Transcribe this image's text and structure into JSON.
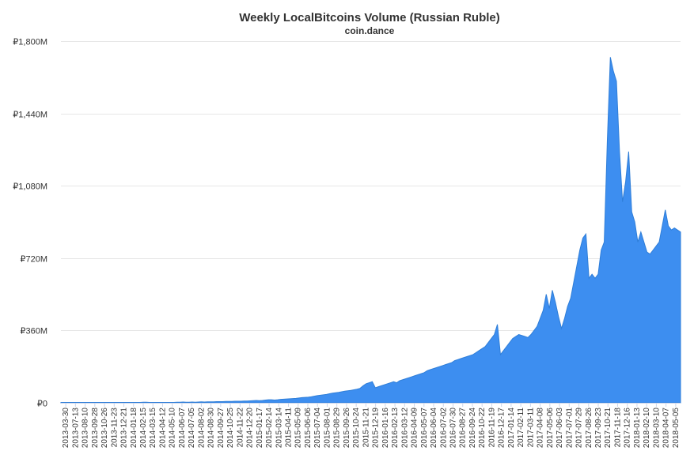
{
  "chart_data": {
    "type": "area",
    "title": "Weekly LocalBitcoins Volume (Russian Ruble)",
    "subtitle": "coin.dance",
    "xlabel": "",
    "ylabel": "",
    "ylim": [
      0,
      1800
    ],
    "y_ticks": [
      0,
      360,
      720,
      1080,
      1440,
      1800
    ],
    "y_tick_labels": [
      "₽0",
      "₽360M",
      "₽720M",
      "₽1,080M",
      "₽1,440M",
      "₽1,800M"
    ],
    "x_tick_labels": [
      "2013-03-30",
      "2013-07-13",
      "2013-08-10",
      "2013-09-28",
      "2013-10-26",
      "2013-11-23",
      "2013-12-21",
      "2014-01-18",
      "2014-02-15",
      "2014-03-15",
      "2014-04-12",
      "2014-05-10",
      "2014-06-07",
      "2014-07-05",
      "2014-08-02",
      "2014-08-30",
      "2014-09-27",
      "2014-10-25",
      "2014-11-22",
      "2014-12-20",
      "2015-01-17",
      "2015-02-14",
      "2015-03-14",
      "2015-04-11",
      "2015-05-09",
      "2015-06-06",
      "2015-07-04",
      "2015-08-01",
      "2015-08-29",
      "2015-09-26",
      "2015-10-24",
      "2015-11-21",
      "2015-12-19",
      "2016-01-16",
      "2016-02-13",
      "2016-03-12",
      "2016-04-09",
      "2016-05-07",
      "2016-06-04",
      "2016-07-02",
      "2016-07-30",
      "2016-08-27",
      "2016-09-24",
      "2016-10-22",
      "2016-11-19",
      "2016-12-17",
      "2017-01-14",
      "2017-02-11",
      "2017-03-11",
      "2017-04-08",
      "2017-05-06",
      "2017-06-03",
      "2017-07-01",
      "2017-07-29",
      "2017-08-26",
      "2017-09-23",
      "2017-10-21",
      "2017-11-18",
      "2017-12-16",
      "2018-01-13",
      "2018-02-10",
      "2018-03-10",
      "2018-04-07",
      "2018-05-05"
    ],
    "series": [
      {
        "color": "#3d8ef0",
        "values": [
          2,
          2,
          2,
          2,
          2,
          2,
          2,
          2,
          2,
          2,
          2,
          2,
          2,
          2,
          2,
          2,
          2,
          2,
          2,
          2,
          2,
          2,
          2,
          2,
          2,
          2,
          2,
          3,
          3,
          2,
          2,
          2,
          2,
          2,
          2,
          2,
          2,
          2,
          3,
          3,
          4,
          3,
          3,
          4,
          3,
          4,
          5,
          4,
          5,
          5,
          5,
          6,
          6,
          6,
          7,
          7,
          7,
          8,
          8,
          8,
          9,
          9,
          10,
          11,
          12,
          11,
          12,
          14,
          15,
          15,
          14,
          15,
          17,
          18,
          19,
          20,
          21,
          22,
          24,
          26,
          27,
          28,
          30,
          33,
          36,
          38,
          40,
          42,
          45,
          48,
          50,
          52,
          55,
          58,
          60,
          62,
          65,
          68,
          72,
          85,
          95,
          100,
          105,
          75,
          80,
          85,
          90,
          95,
          100,
          105,
          100,
          110,
          115,
          120,
          125,
          130,
          135,
          140,
          145,
          150,
          160,
          165,
          170,
          175,
          180,
          185,
          190,
          195,
          200,
          210,
          215,
          220,
          225,
          230,
          235,
          240,
          250,
          260,
          270,
          280,
          300,
          320,
          340,
          390,
          240,
          260,
          280,
          300,
          320,
          330,
          340,
          335,
          330,
          325,
          340,
          360,
          380,
          420,
          460,
          540,
          470,
          560,
          500,
          430,
          370,
          420,
          480,
          520,
          600,
          680,
          760,
          820,
          840,
          620,
          640,
          620,
          640,
          760,
          800,
          1300,
          1720,
          1650,
          1600,
          1250,
          1000,
          1100,
          1250,
          950,
          900,
          800,
          850,
          800,
          750,
          740,
          760,
          780,
          800,
          880,
          960,
          880,
          860,
          870,
          860,
          850
        ]
      }
    ]
  }
}
